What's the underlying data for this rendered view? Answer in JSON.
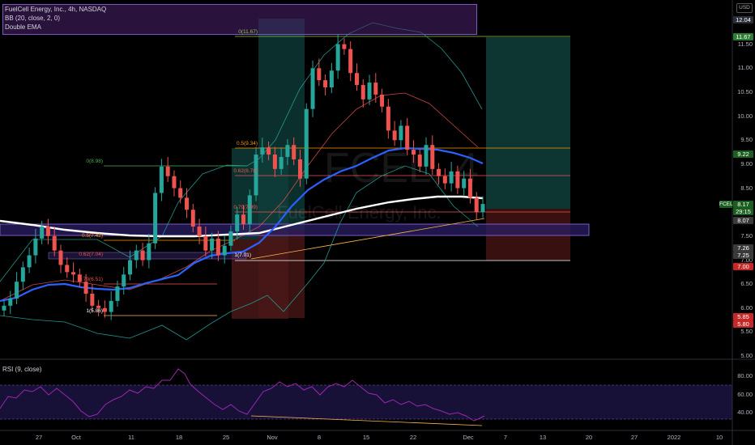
{
  "legend": {
    "symbol_line": "FuelCell Energy, Inc., 4h, NASDAQ",
    "bb_line": "BB (20, close, 2, 0)",
    "ema_line": "Double EMA"
  },
  "watermark": {
    "ticker": "FCEL, 4",
    "name": "FuelCell Energy, Inc."
  },
  "currency": "USD",
  "rsi": {
    "label": "RSI (9, close)",
    "ticks": [
      "80.00",
      "60.00",
      "40.00"
    ]
  },
  "price_axis": [
    "12.00",
    "11.50",
    "11.00",
    "10.50",
    "10.00",
    "9.50",
    "9.00",
    "8.50",
    "8.00",
    "7.50",
    "7.00",
    "6.50",
    "6.00",
    "5.50",
    "5.00"
  ],
  "price_tags": [
    {
      "text": "12.04",
      "color": "#2a2e39"
    },
    {
      "text": "11.67",
      "color": "#2e7d32"
    },
    {
      "text": "9.22",
      "color": "#1b5e20"
    },
    {
      "text": "FCEL",
      "color": "#1b5e20"
    },
    {
      "text": "8.17",
      "color": "#1b5e20"
    },
    {
      "text": "29:15",
      "color": "#1b5e20"
    },
    {
      "text": "8.07",
      "color": "#3a3a3a"
    },
    {
      "text": "7.26",
      "color": "#3a3a3a"
    },
    {
      "text": "7.25",
      "color": "#3a3a3a"
    },
    {
      "text": "7.00",
      "color": "#c62828"
    },
    {
      "text": "5.85",
      "color": "#c62828"
    },
    {
      "text": "5.80",
      "color": "#c62828"
    }
  ],
  "time_axis": [
    "27",
    "Oct",
    "11",
    "18",
    "25",
    "Nov",
    "8",
    "15",
    "22",
    "Dec",
    "7",
    "13",
    "20",
    "27",
    "2022",
    "10"
  ],
  "fib_levels": {
    "left": [
      "0(8.98)",
      "0.5(7.42)",
      "0.62(7.04)",
      "0.79(6.51)",
      "1(5.86)"
    ],
    "right": [
      "0(11.67)",
      "0.5(9.34)",
      "0.62(8.78)",
      "0.79(7.99)",
      "1(7.01)"
    ]
  },
  "colors": {
    "up": "#26a69a",
    "down": "#ef5350",
    "ema": "#2962ff",
    "bb": "#26a69a",
    "rsi": "#9c27b0"
  },
  "chart_data": {
    "type": "candlestick",
    "title": "FuelCell Energy, Inc., 4h, NASDAQ",
    "ylim": [
      5.0,
      12.1
    ],
    "x_ticks": [
      "27",
      "Oct",
      "11",
      "18",
      "25",
      "Nov",
      "8",
      "15",
      "22",
      "Dec",
      "7",
      "13",
      "20",
      "27",
      "2022",
      "10"
    ],
    "series": [
      {
        "name": "FCEL",
        "close": [
          6.05,
          6.2,
          6.55,
          6.85,
          7.1,
          7.45,
          7.7,
          7.5,
          7.2,
          6.9,
          6.75,
          6.7,
          6.55,
          6.3,
          6.05,
          6.0,
          5.92,
          6.15,
          6.45,
          6.7,
          7.0,
          7.2,
          7.0,
          7.35,
          8.4,
          8.95,
          8.75,
          8.5,
          8.3,
          8.05,
          7.7,
          7.5,
          7.2,
          7.45,
          7.1,
          7.3,
          7.6,
          7.95,
          7.75,
          8.35,
          9.2,
          9.35,
          9.2,
          8.9,
          9.15,
          9.4,
          9.1,
          8.7,
          10.15,
          11.0,
          10.75,
          10.6,
          10.95,
          11.5,
          11.4,
          10.9,
          10.65,
          10.35,
          10.7,
          10.45,
          10.2,
          9.7,
          9.5,
          9.8,
          9.3,
          9.2,
          8.95,
          9.4,
          8.9,
          8.75,
          8.6,
          8.85,
          8.5,
          8.7,
          8.3,
          8.0,
          8.17
        ]
      }
    ]
  }
}
